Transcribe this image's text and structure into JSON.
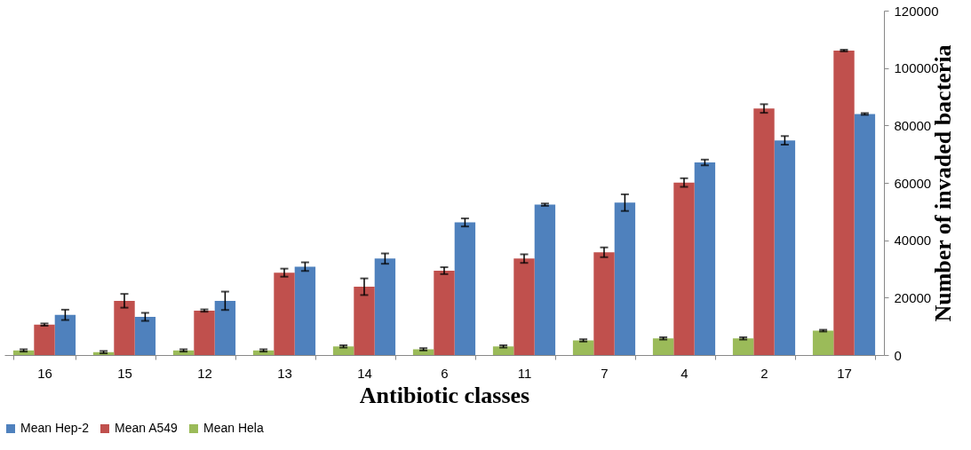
{
  "chart_data": {
    "type": "bar",
    "xlabel": "Antibiotic classes",
    "ylabel": "Number of invaded bacteria",
    "categories": [
      "16",
      "15",
      "12",
      "13",
      "14",
      "6",
      "11",
      "7",
      "4",
      "2",
      "17"
    ],
    "series": [
      {
        "name": "Mean Hep-2",
        "color": "#4f81bd",
        "values": [
          14000,
          13300,
          18900,
          30800,
          33600,
          46200,
          52400,
          53100,
          67100,
          74800,
          84000
        ],
        "errors": [
          1800,
          1400,
          3200,
          1500,
          1800,
          1400,
          400,
          2900,
          1000,
          1500,
          300
        ]
      },
      {
        "name": "Mean A549",
        "color": "#c0504d",
        "values": [
          10600,
          18900,
          15500,
          28700,
          23800,
          29400,
          33600,
          35800,
          60100,
          85900,
          106100
        ],
        "errors": [
          400,
          2400,
          400,
          1400,
          2900,
          1200,
          1500,
          1700,
          1500,
          1500,
          300
        ]
      },
      {
        "name": "Mean Hela",
        "color": "#9bbb59",
        "values": [
          1600,
          1000,
          1600,
          1600,
          3000,
          2000,
          3000,
          5100,
          5800,
          5800,
          8500
        ],
        "errors": [
          400,
          400,
          400,
          400,
          400,
          400,
          400,
          400,
          400,
          400,
          300
        ]
      }
    ],
    "ylim": [
      0,
      120000
    ],
    "yticks": [
      0,
      20000,
      40000,
      60000,
      80000,
      100000,
      120000
    ],
    "grid": false,
    "legend": "bottom"
  }
}
